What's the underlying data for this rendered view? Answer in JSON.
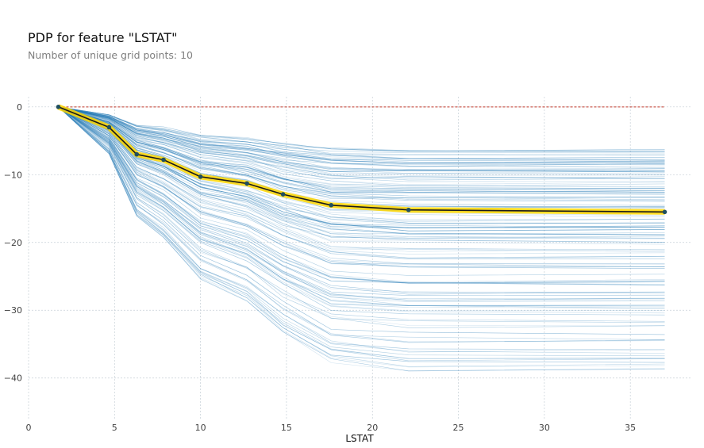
{
  "title": "PDP for feature \"LSTAT\"",
  "subtitle": "Number of unique grid points: 10",
  "chart_data": {
    "type": "line",
    "xlabel": "LSTAT",
    "ylabel": "",
    "xlim": [
      0,
      38.5
    ],
    "ylim": [
      -46,
      1.5
    ],
    "xticks": [
      0,
      5,
      10,
      15,
      20,
      25,
      30,
      35
    ],
    "yticks": [
      0,
      -10,
      -20,
      -30,
      -40
    ],
    "grid": true,
    "x": [
      1.73,
      4.68,
      6.29,
      7.85,
      10.0,
      12.7,
      14.8,
      17.6,
      22.1,
      37.0
    ],
    "pdp": [
      0,
      -3.0,
      -7.0,
      -7.8,
      -10.3,
      -11.3,
      -12.9,
      -14.5,
      -15.2,
      -15.5
    ],
    "baseline": 0,
    "ice_final_levels": [
      -6.5,
      -7.0,
      -7.5,
      -7.9,
      -8.3,
      -8.7,
      -9.1,
      -9.5,
      -10.0,
      -10.5,
      -11.2,
      -12.2,
      -12.7,
      -13.1,
      -13.6,
      -14.4,
      -15.2,
      -16.0,
      -16.8,
      -17.8,
      -18.3,
      -18.8,
      -19.5,
      -20.6,
      -21.5,
      -22.7,
      -24.0,
      -25.2,
      -26.4,
      -27.6,
      -28.1,
      -29.2,
      -30.2,
      -31.8,
      -34.0,
      -36.2,
      -37.5,
      -38.4
    ],
    "colors": {
      "ice": "#1f77b4",
      "pdp_line": "#1a1a1a",
      "pdp_band": "#ffd700",
      "pdp_marker": "#1f4e5f",
      "baseline": "#c0392b",
      "grid": "#c6cfd6"
    }
  }
}
